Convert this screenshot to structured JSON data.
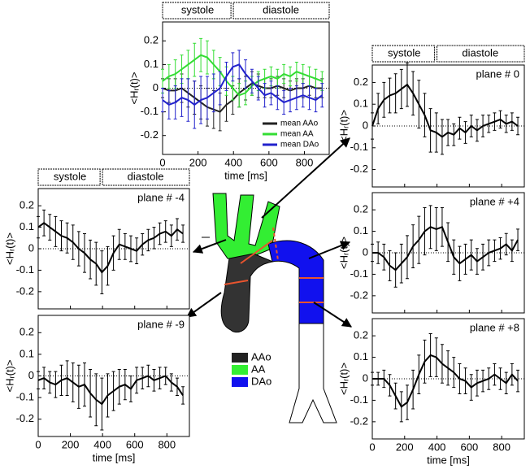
{
  "chart_data": [
    {
      "type": "line",
      "annotation": null,
      "phases": [
        "systole",
        "diastole"
      ],
      "xlabel": "time [ms]",
      "ylabel": "<Hᵣ(t)>",
      "x": [
        0,
        36,
        72,
        108,
        144,
        180,
        216,
        252,
        288,
        324,
        360,
        396,
        432,
        468,
        504,
        540,
        576,
        612,
        648,
        684,
        720,
        756,
        792,
        828,
        864,
        900
      ],
      "xlim": [
        0,
        940
      ],
      "xticks": [
        0,
        200,
        400,
        600,
        800
      ],
      "ylim": [
        -0.28,
        0.28
      ],
      "yticks": [
        -0.2,
        -0.1,
        0,
        0.1,
        0.2
      ],
      "legend": "lower right",
      "series": [
        {
          "name": "mean AAo",
          "color": "#222222",
          "values": [
            0.0,
            -0.01,
            -0.01,
            0.0,
            -0.02,
            -0.04,
            -0.06,
            -0.08,
            -0.09,
            -0.1,
            -0.07,
            -0.05,
            -0.02,
            0.0,
            0.02,
            0.01,
            0.0,
            0.0,
            0.01,
            0.0,
            -0.01,
            0.0,
            0.0,
            0.01,
            0.0,
            0.0
          ],
          "errors": [
            0.04,
            0.05,
            0.05,
            0.06,
            0.06,
            0.07,
            0.07,
            0.08,
            0.08,
            0.08,
            0.07,
            0.06,
            0.06,
            0.05,
            0.05,
            0.05,
            0.04,
            0.04,
            0.04,
            0.04,
            0.04,
            0.04,
            0.04,
            0.04,
            0.04,
            0.04
          ]
        },
        {
          "name": "mean AA",
          "color": "#33dd33",
          "values": [
            0.03,
            0.05,
            0.06,
            0.08,
            0.1,
            0.12,
            0.14,
            0.13,
            0.1,
            0.07,
            0.03,
            0.0,
            -0.03,
            -0.02,
            0.01,
            0.03,
            0.04,
            0.05,
            0.04,
            0.06,
            0.05,
            0.07,
            0.06,
            0.05,
            0.04,
            0.03
          ],
          "errors": [
            0.05,
            0.05,
            0.06,
            0.06,
            0.06,
            0.07,
            0.07,
            0.07,
            0.06,
            0.06,
            0.06,
            0.05,
            0.05,
            0.05,
            0.04,
            0.04,
            0.04,
            0.04,
            0.04,
            0.04,
            0.04,
            0.04,
            0.04,
            0.04,
            0.04,
            0.04
          ]
        },
        {
          "name": "mean DAo",
          "color": "#2222cc",
          "values": [
            -0.05,
            -0.07,
            -0.06,
            -0.04,
            -0.05,
            -0.07,
            -0.05,
            -0.04,
            -0.02,
            0.0,
            0.05,
            0.09,
            0.1,
            0.06,
            0.03,
            0.0,
            -0.03,
            -0.02,
            -0.04,
            -0.06,
            -0.05,
            -0.04,
            -0.03,
            -0.04,
            -0.05,
            -0.03
          ],
          "errors": [
            0.05,
            0.06,
            0.07,
            0.08,
            0.09,
            0.1,
            0.1,
            0.09,
            0.08,
            0.07,
            0.06,
            0.06,
            0.06,
            0.06,
            0.05,
            0.05,
            0.05,
            0.05,
            0.05,
            0.05,
            0.05,
            0.05,
            0.05,
            0.05,
            0.05,
            0.05
          ]
        }
      ]
    },
    {
      "type": "line",
      "annotation": "plane # 0",
      "phases": [
        "systole",
        "diastole"
      ],
      "ylabel": "<Hᵣ(t)>",
      "x": [
        0,
        36,
        72,
        108,
        144,
        180,
        216,
        252,
        288,
        324,
        360,
        396,
        432,
        468,
        504,
        540,
        576,
        612,
        648,
        684,
        720,
        756,
        792,
        828,
        864,
        900
      ],
      "xlim": [
        0,
        940
      ],
      "xticks": [
        0,
        200,
        400,
        600,
        800
      ],
      "ylim": [
        -0.28,
        0.28
      ],
      "yticks": [
        -0.2,
        -0.1,
        0,
        0.1,
        0.2
      ],
      "series": [
        {
          "color": "#000000",
          "values": [
            0.0,
            0.08,
            0.12,
            0.14,
            0.15,
            0.17,
            0.19,
            0.15,
            0.1,
            0.05,
            -0.02,
            -0.03,
            -0.05,
            -0.03,
            -0.04,
            -0.01,
            -0.03,
            0.0,
            -0.02,
            0.0,
            0.01,
            0.02,
            0.03,
            0.01,
            0.02,
            0.0
          ],
          "errors": [
            0.06,
            0.07,
            0.08,
            0.08,
            0.09,
            0.09,
            0.1,
            0.1,
            0.11,
            0.1,
            0.1,
            0.09,
            0.08,
            0.06,
            0.05,
            0.05,
            0.05,
            0.05,
            0.05,
            0.05,
            0.04,
            0.04,
            0.04,
            0.04,
            0.04,
            0.04
          ]
        }
      ]
    },
    {
      "type": "line",
      "annotation": "plane # -4",
      "phases": [
        "systole",
        "diastole"
      ],
      "ylabel": "<Hᵣ(t)>",
      "x": [
        0,
        36,
        72,
        108,
        144,
        180,
        216,
        252,
        288,
        324,
        360,
        396,
        432,
        468,
        504,
        540,
        576,
        612,
        648,
        684,
        720,
        756,
        792,
        828,
        864,
        900
      ],
      "xlim": [
        0,
        940
      ],
      "xticks": [
        0,
        200,
        400,
        600,
        800
      ],
      "ylim": [
        -0.28,
        0.28
      ],
      "yticks": [
        -0.2,
        -0.1,
        0,
        0.1,
        0.2
      ],
      "series": [
        {
          "color": "#000000",
          "values": [
            0.1,
            0.12,
            0.1,
            0.08,
            0.06,
            0.05,
            0.03,
            0.0,
            -0.02,
            -0.05,
            -0.07,
            -0.11,
            -0.08,
            -0.02,
            0.02,
            0.01,
            0.0,
            -0.01,
            0.02,
            0.04,
            0.05,
            0.07,
            0.08,
            0.06,
            0.09,
            0.07
          ],
          "errors": [
            0.05,
            0.06,
            0.06,
            0.07,
            0.07,
            0.07,
            0.08,
            0.08,
            0.09,
            0.09,
            0.1,
            0.1,
            0.09,
            0.08,
            0.07,
            0.06,
            0.06,
            0.06,
            0.05,
            0.05,
            0.05,
            0.05,
            0.05,
            0.05,
            0.05,
            0.04
          ]
        }
      ]
    },
    {
      "type": "line",
      "annotation": "plane # +4",
      "ylabel": "<Hᵣ(t)>",
      "x": [
        0,
        36,
        72,
        108,
        144,
        180,
        216,
        252,
        288,
        324,
        360,
        396,
        432,
        468,
        504,
        540,
        576,
        612,
        648,
        684,
        720,
        756,
        792,
        828,
        864,
        900
      ],
      "xlim": [
        0,
        940
      ],
      "xticks": [
        0,
        200,
        400,
        600,
        800
      ],
      "ylim": [
        -0.28,
        0.28
      ],
      "yticks": [
        -0.2,
        -0.1,
        0,
        0.1,
        0.2
      ],
      "series": [
        {
          "color": "#000000",
          "values": [
            0.0,
            0.0,
            -0.02,
            -0.06,
            -0.08,
            -0.05,
            -0.02,
            0.03,
            0.06,
            0.1,
            0.12,
            0.11,
            0.12,
            0.05,
            -0.02,
            -0.05,
            -0.03,
            -0.01,
            -0.04,
            -0.02,
            0.0,
            0.01,
            0.02,
            0.04,
            0.01,
            0.06
          ],
          "errors": [
            0.04,
            0.05,
            0.06,
            0.07,
            0.08,
            0.09,
            0.1,
            0.1,
            0.11,
            0.11,
            0.1,
            0.1,
            0.09,
            0.09,
            0.08,
            0.08,
            0.07,
            0.07,
            0.06,
            0.06,
            0.06,
            0.05,
            0.05,
            0.05,
            0.05,
            0.05
          ]
        }
      ]
    },
    {
      "type": "line",
      "annotation": "plane # -9",
      "xlabel": "time [ms]",
      "ylabel": "<Hᵣ(t)>",
      "x": [
        0,
        36,
        72,
        108,
        144,
        180,
        216,
        252,
        288,
        324,
        360,
        396,
        432,
        468,
        504,
        540,
        576,
        612,
        648,
        684,
        720,
        756,
        792,
        828,
        864,
        900
      ],
      "xlim": [
        0,
        940
      ],
      "xticks": [
        0,
        200,
        400,
        600,
        800
      ],
      "ylim": [
        -0.28,
        0.28
      ],
      "yticks": [
        -0.2,
        -0.1,
        0,
        0.1,
        0.2
      ],
      "series": [
        {
          "color": "#000000",
          "values": [
            -0.02,
            -0.01,
            -0.03,
            -0.04,
            -0.02,
            -0.01,
            -0.03,
            -0.05,
            -0.04,
            -0.08,
            -0.11,
            -0.13,
            -0.09,
            -0.07,
            -0.05,
            -0.04,
            -0.06,
            -0.02,
            -0.01,
            0.0,
            -0.02,
            -0.01,
            0.0,
            -0.03,
            -0.05,
            -0.09
          ],
          "errors": [
            0.04,
            0.05,
            0.05,
            0.06,
            0.07,
            0.08,
            0.09,
            0.1,
            0.1,
            0.11,
            0.12,
            0.12,
            0.1,
            0.09,
            0.08,
            0.07,
            0.06,
            0.06,
            0.05,
            0.05,
            0.05,
            0.05,
            0.04,
            0.04,
            0.04,
            0.04
          ]
        }
      ]
    },
    {
      "type": "line",
      "annotation": "plane # +8",
      "xlabel": "time [ms]",
      "ylabel": "<Hᵣ(t)>",
      "x": [
        0,
        36,
        72,
        108,
        144,
        180,
        216,
        252,
        288,
        324,
        360,
        396,
        432,
        468,
        504,
        540,
        576,
        612,
        648,
        684,
        720,
        756,
        792,
        828,
        864,
        900
      ],
      "xlim": [
        0,
        940
      ],
      "xticks": [
        0,
        200,
        400,
        600,
        800
      ],
      "ylim": [
        -0.28,
        0.28
      ],
      "yticks": [
        -0.2,
        -0.1,
        0,
        0.1,
        0.2
      ],
      "series": [
        {
          "color": "#000000",
          "values": [
            0.0,
            0.0,
            0.0,
            -0.03,
            -0.08,
            -0.13,
            -0.11,
            -0.05,
            0.02,
            0.08,
            0.11,
            0.1,
            0.07,
            0.05,
            0.03,
            0.0,
            -0.01,
            -0.04,
            -0.02,
            -0.01,
            0.0,
            0.02,
            0.0,
            -0.02,
            0.02,
            -0.01
          ],
          "errors": [
            0.03,
            0.03,
            0.04,
            0.05,
            0.06,
            0.07,
            0.08,
            0.09,
            0.09,
            0.1,
            0.1,
            0.09,
            0.09,
            0.08,
            0.07,
            0.07,
            0.06,
            0.06,
            0.06,
            0.05,
            0.05,
            0.05,
            0.05,
            0.05,
            0.05,
            0.05
          ]
        }
      ]
    }
  ],
  "diagram_legend": [
    "AAo",
    "AA",
    "DAo"
  ]
}
